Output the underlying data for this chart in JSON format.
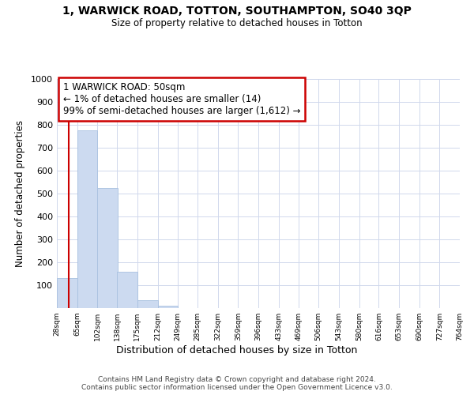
{
  "title": "1, WARWICK ROAD, TOTTON, SOUTHAMPTON, SO40 3QP",
  "subtitle": "Size of property relative to detached houses in Totton",
  "xlabel": "Distribution of detached houses by size in Totton",
  "ylabel": "Number of detached properties",
  "bar_color": "#ccdaf0",
  "bar_edge_color": "#a8c0e0",
  "annotation_line_color": "#cc0000",
  "annotation_box_color": "#cc0000",
  "annotation_text": "1 WARWICK ROAD: 50sqm\n← 1% of detached houses are smaller (14)\n99% of semi-detached houses are larger (1,612) →",
  "property_size": 50,
  "bin_edges": [
    28,
    65,
    102,
    138,
    175,
    212,
    249,
    285,
    322,
    359,
    396,
    433,
    469,
    506,
    543,
    580,
    616,
    653,
    690,
    727,
    764
  ],
  "bar_heights": [
    132,
    775,
    525,
    158,
    35,
    11,
    0,
    0,
    0,
    0,
    0,
    0,
    0,
    0,
    0,
    0,
    0,
    0,
    0,
    0
  ],
  "tick_labels": [
    "28sqm",
    "65sqm",
    "102sqm",
    "138sqm",
    "175sqm",
    "212sqm",
    "249sqm",
    "285sqm",
    "322sqm",
    "359sqm",
    "396sqm",
    "433sqm",
    "469sqm",
    "506sqm",
    "543sqm",
    "580sqm",
    "616sqm",
    "653sqm",
    "690sqm",
    "727sqm",
    "764sqm"
  ],
  "ylim": [
    0,
    1000
  ],
  "yticks": [
    0,
    100,
    200,
    300,
    400,
    500,
    600,
    700,
    800,
    900,
    1000
  ],
  "footnote": "Contains HM Land Registry data © Crown copyright and database right 2024.\nContains public sector information licensed under the Open Government Licence v3.0.",
  "background_color": "#ffffff",
  "grid_color": "#d0d8ec"
}
